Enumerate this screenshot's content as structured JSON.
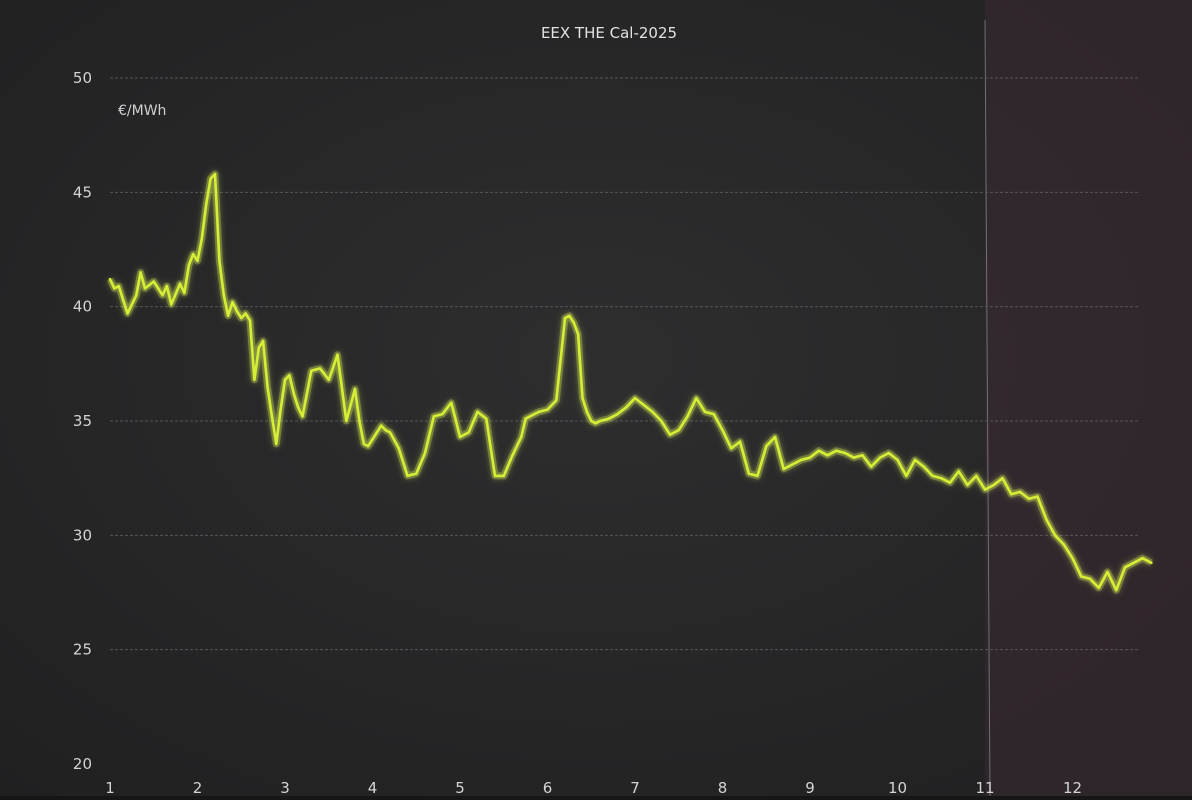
{
  "chart_data": {
    "type": "line",
    "title": "EEX THE Cal-2025",
    "unit_label": "€/MWh",
    "xlabel": "",
    "ylabel": "",
    "ylim": [
      20,
      50
    ],
    "yticks": [
      20,
      25,
      30,
      35,
      40,
      45,
      50
    ],
    "xlim": [
      1,
      13
    ],
    "xticks": [
      "1",
      "2",
      "3",
      "4",
      "5",
      "6",
      "7",
      "8",
      "9",
      "10",
      "11",
      "12"
    ],
    "grid": "horizontal",
    "colors": {
      "background": "#2b2b2c",
      "line": "#d6ee35",
      "glow": "#eaff55",
      "grid": "#55565a",
      "text": "#d4d4d6"
    },
    "series": [
      {
        "x": [
          1.0,
          1.05,
          1.1,
          1.15,
          1.2,
          1.3,
          1.35,
          1.4,
          1.5,
          1.6,
          1.65,
          1.7,
          1.8,
          1.85,
          1.9,
          1.95,
          2.0,
          2.05,
          2.1,
          2.15,
          2.2,
          2.25,
          2.3,
          2.35,
          2.4,
          2.45,
          2.5,
          2.55,
          2.6,
          2.65,
          2.7,
          2.75,
          2.8,
          2.85,
          2.9,
          2.95,
          3.0,
          3.05,
          3.1,
          3.15,
          3.2,
          3.3,
          3.4,
          3.5,
          3.6,
          3.7,
          3.8,
          3.85,
          3.9,
          3.95,
          4.0,
          4.05,
          4.1,
          4.15,
          4.2,
          4.3,
          4.4,
          4.5,
          4.6,
          4.7,
          4.8,
          4.9,
          5.0,
          5.1,
          5.2,
          5.3,
          5.4,
          5.5,
          5.6,
          5.7,
          5.75,
          5.8,
          5.9,
          6.0,
          6.1,
          6.2,
          6.25,
          6.3,
          6.35,
          6.4,
          6.45,
          6.5,
          6.55,
          6.6,
          6.7,
          6.8,
          6.9,
          7.0,
          7.1,
          7.2,
          7.3,
          7.4,
          7.5,
          7.6,
          7.7,
          7.8,
          7.9,
          8.0,
          8.1,
          8.2,
          8.3,
          8.4,
          8.5,
          8.6,
          8.7,
          8.8,
          8.9,
          9.0,
          9.1,
          9.2,
          9.3,
          9.4,
          9.5,
          9.6,
          9.7,
          9.8,
          9.9,
          10.0,
          10.1,
          10.2,
          10.3,
          10.4,
          10.5,
          10.6,
          10.7,
          10.8,
          10.9,
          11.0,
          11.1,
          11.2,
          11.3,
          11.4,
          11.5,
          11.6,
          11.7,
          11.8,
          11.9,
          12.0,
          12.1,
          12.2,
          12.3,
          12.4,
          12.5,
          12.6,
          12.7,
          12.8,
          12.9
        ],
        "y": [
          41.2,
          40.8,
          40.9,
          40.3,
          39.7,
          40.5,
          41.5,
          40.8,
          41.1,
          40.5,
          40.9,
          40.1,
          41.0,
          40.6,
          41.8,
          42.3,
          42.0,
          43.0,
          44.5,
          45.6,
          45.8,
          42.0,
          40.5,
          39.6,
          40.2,
          39.8,
          39.5,
          39.7,
          39.4,
          36.8,
          38.2,
          38.5,
          36.5,
          35.2,
          34.0,
          35.5,
          36.8,
          37.0,
          36.2,
          35.6,
          35.2,
          37.2,
          37.3,
          36.8,
          37.9,
          35.0,
          36.4,
          35.0,
          34.0,
          33.9,
          34.2,
          34.5,
          34.8,
          34.6,
          34.5,
          33.8,
          32.6,
          32.7,
          33.6,
          35.2,
          35.3,
          35.8,
          34.3,
          34.5,
          35.4,
          35.1,
          32.6,
          32.6,
          33.5,
          34.3,
          35.1,
          35.2,
          35.4,
          35.5,
          35.9,
          39.5,
          39.6,
          39.3,
          38.8,
          36.0,
          35.4,
          35.0,
          34.9,
          35.0,
          35.1,
          35.3,
          35.6,
          36.0,
          35.7,
          35.4,
          35.0,
          34.4,
          34.6,
          35.2,
          36.0,
          35.4,
          35.3,
          34.6,
          33.8,
          34.1,
          32.7,
          32.6,
          33.9,
          34.3,
          32.9,
          33.1,
          33.3,
          33.4,
          33.7,
          33.5,
          33.7,
          33.6,
          33.4,
          33.5,
          33.0,
          33.4,
          33.6,
          33.3,
          32.6,
          33.3,
          33.0,
          32.6,
          32.5,
          32.3,
          32.8,
          32.2,
          32.6,
          32.0,
          32.2,
          32.5,
          31.8,
          31.9,
          31.6,
          31.7,
          30.7,
          30.0,
          29.6,
          29.0,
          28.2,
          28.1,
          27.7,
          28.4,
          27.6,
          28.6,
          28.8,
          29.0,
          28.8
        ]
      }
    ]
  }
}
